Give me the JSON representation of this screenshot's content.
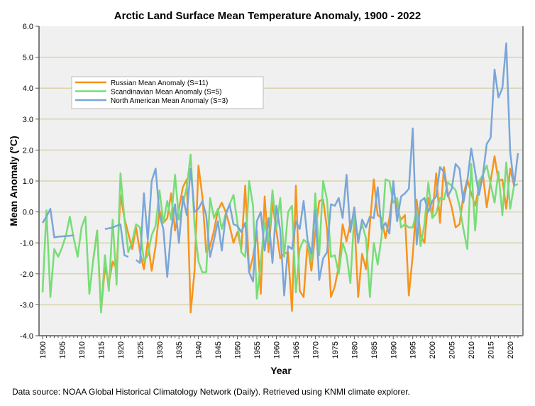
{
  "chart_data": {
    "type": "line",
    "title": "Arctic Land Surface Mean Temperature Anomaly, 1900 - 2022",
    "xlabel": "Year",
    "ylabel": "Mean Anomaly (°C)",
    "xlim": [
      1899,
      2022
    ],
    "ylim": [
      -4.0,
      6.0
    ],
    "yticks": [
      "-4.0",
      "-3.0",
      "-2.0",
      "-1.0",
      "0.0",
      "1.0",
      "2.0",
      "3.0",
      "4.0",
      "5.0",
      "6.0"
    ],
    "xticks": [
      "1900",
      "1905",
      "1910",
      "1915",
      "1920",
      "1925",
      "1930",
      "1935",
      "1940",
      "1945",
      "1950",
      "1955",
      "1960",
      "1965",
      "1970",
      "1975",
      "1980",
      "1985",
      "1990",
      "1995",
      "2000",
      "2005",
      "2010",
      "2015",
      "2020"
    ],
    "grid": "horizontal",
    "legend_position": "upper-left",
    "series": [
      {
        "name": "Russian Mean Anomaly (S=11)",
        "color": "#f7941d",
        "start_year": 1913,
        "values": [
          -1.55,
          -0.6,
          -3.2,
          -1.8,
          -2.3,
          -1.6,
          -1.85,
          0.55,
          -0.2,
          -0.7,
          -1.2,
          -0.5,
          -1.3,
          -1.85,
          -0.95,
          -1.9,
          -1.1,
          0.05,
          -0.35,
          -0.2,
          0.6,
          -0.6,
          0.1,
          0.8,
          1.05,
          -3.25,
          -1.9,
          1.5,
          0.5,
          -1.3,
          -1.1,
          -0.6,
          0.05,
          0.3,
          0.0,
          -0.45,
          -1.0,
          -0.65,
          -1.2,
          0.85,
          -1.95,
          -1.45,
          -0.6,
          -2.65,
          0.5,
          -1.3,
          0.3,
          -0.6,
          -1.5,
          -1.35,
          -1.3,
          -3.2,
          0.85,
          -2.55,
          -2.75,
          -1.0,
          -1.9,
          -0.65,
          0.35,
          0.4,
          -0.55,
          -2.75,
          -2.4,
          -1.75,
          -0.4,
          -0.95,
          -0.35,
          -0.15,
          -2.75,
          -1.35,
          -1.85,
          -0.4,
          1.05,
          -0.1,
          -0.2,
          -0.85,
          -0.2,
          0.75,
          0.1,
          -0.25,
          -0.1,
          -2.7,
          -1.4,
          0.4,
          -0.75,
          -1.0,
          0.45,
          -0.15,
          1.25,
          -0.35,
          1.45,
          0.6,
          0.15,
          -0.5,
          -0.4,
          0.55,
          1.05,
          0.6,
          0.2,
          0.8,
          1.2,
          0.15,
          1.0,
          1.8,
          1.0,
          1.05,
          0.1,
          1.4,
          0.85,
          0.9
        ]
      },
      {
        "name": "Scandinavian Mean Anomaly (S=5)",
        "color": "#77dd77",
        "start_year": 1900,
        "values": [
          -2.6,
          0.05,
          -2.75,
          -1.2,
          -1.45,
          -1.15,
          -0.75,
          -0.15,
          -0.85,
          -1.45,
          -0.5,
          -0.15,
          -2.65,
          -1.55,
          -0.6,
          -3.25,
          -1.4,
          -2.55,
          -0.25,
          -2.35,
          1.25,
          -0.2,
          -1.3,
          -0.95,
          -0.4,
          -0.5,
          -1.6,
          -1.4,
          -0.75,
          -0.45,
          0.7,
          -0.35,
          0.35,
          -0.25,
          1.2,
          -0.25,
          0.25,
          0.8,
          1.85,
          -0.45,
          -1.6,
          -1.95,
          -1.95,
          0.45,
          -0.2,
          0.1,
          -0.55,
          -0.05,
          0.25,
          0.55,
          -0.35,
          -1.3,
          -1.45,
          1.0,
          0.2,
          -2.8,
          -1.6,
          -0.35,
          -0.95,
          0.7,
          -0.55,
          0.45,
          -1.45,
          0.0,
          0.2,
          -2.6,
          -1.2,
          -0.9,
          -1.0,
          -1.6,
          0.6,
          -1.4,
          1.0,
          0.4,
          -1.45,
          -1.4,
          -2.0,
          -1.0,
          -1.4,
          -2.3,
          -0.1,
          -0.85,
          -0.4,
          -0.85,
          -2.75,
          -1.0,
          -1.7,
          -0.8,
          1.05,
          1.0,
          0.3,
          0.45,
          -0.5,
          -0.4,
          -0.5,
          -0.5,
          0.05,
          -1.1,
          -0.4,
          0.95,
          -0.2,
          -0.05,
          0.45,
          0.4,
          0.95,
          0.85,
          0.7,
          0.2,
          -0.55,
          -1.2,
          1.55,
          -0.6,
          1.0,
          1.2,
          1.5,
          0.9,
          0.3,
          1.3,
          -0.1,
          1.6,
          0.1,
          0.85,
          0.9
        ]
      },
      {
        "name": "North American Mean Anomaly (S=3)",
        "color": "#7aa6d8",
        "start_year": 1900,
        "values": [
          -0.35,
          -0.15,
          0.1,
          -0.82,
          -0.8,
          -0.79,
          -0.78,
          -0.77,
          -0.75,
          null,
          null,
          null,
          null,
          null,
          null,
          null,
          -0.55,
          -0.53,
          -0.5,
          -0.45,
          -0.4,
          -1.4,
          -1.45,
          null,
          -1.55,
          -1.65,
          0.6,
          -0.9,
          1.0,
          1.4,
          -0.1,
          -0.55,
          -2.1,
          -0.6,
          0.25,
          -1.0,
          0.5,
          -0.1,
          1.4,
          0.0,
          0.1,
          0.35,
          -0.1,
          -1.45,
          -0.9,
          -0.3,
          -1.25,
          -0.1,
          0.25,
          -0.4,
          -0.45,
          -0.65,
          -0.35,
          -1.95,
          -2.25,
          -0.3,
          0.0,
          -1.25,
          -0.2,
          -1.65,
          0.2,
          -0.6,
          -2.7,
          -1.1,
          -1.2,
          -0.3,
          -0.55,
          0.35,
          -0.9,
          -1.35,
          0.05,
          -2.2,
          -1.5,
          -1.3,
          0.25,
          0.2,
          0.45,
          -0.2,
          1.2,
          -0.65,
          0.15,
          -1.0,
          -0.25,
          -0.5,
          -0.15,
          -0.2,
          0.8,
          -0.55,
          -0.35,
          -0.7,
          1.0,
          -0.3,
          0.5,
          0.6,
          0.75,
          2.7,
          -1.05,
          0.35,
          0.45,
          0.0,
          0.35,
          0.5,
          1.45,
          1.3,
          0.5,
          0.75,
          1.55,
          1.4,
          0.3,
          1.0,
          2.05,
          1.3,
          0.55,
          1.2,
          2.2,
          2.4,
          4.6,
          3.7,
          4.0,
          5.45,
          1.95,
          0.85,
          1.9
        ]
      }
    ]
  },
  "footer": {
    "source": "Data source: NOAA Global Historical Climatology Network (Daily). Retrieved using KNMI climate explorer."
  }
}
